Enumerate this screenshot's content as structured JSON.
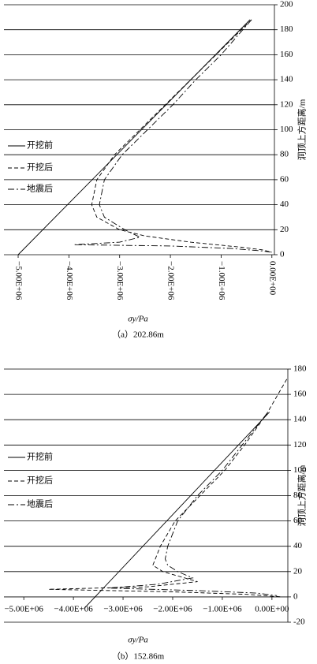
{
  "chart_data": [
    {
      "type": "line",
      "xlabel": "σy/Pa",
      "ylabel": "洞顶上方距离/m",
      "caption": "（a）202.86m",
      "xlim": [
        -5280000,
        50000
      ],
      "ylim": [
        0,
        200
      ],
      "xticks": [
        {
          "value": -5000000,
          "label": "−5.00E+06"
        },
        {
          "value": -4000000,
          "label": "−4.00E+06"
        },
        {
          "value": -3000000,
          "label": "−3.00E+06"
        },
        {
          "value": -2000000,
          "label": "−2.00E+06"
        },
        {
          "value": -1000000,
          "label": "−1.00E+06"
        },
        {
          "value": 0,
          "label": "0.00E+00"
        }
      ],
      "yticks": [
        0,
        20,
        40,
        60,
        80,
        100,
        120,
        140,
        160,
        180,
        200
      ],
      "grid": true,
      "series": [
        {
          "name": "开挖前",
          "color": "#000000",
          "linestyle": "solid",
          "x": [
            -5000000,
            -430000
          ],
          "y": [
            0,
            188
          ]
        },
        {
          "name": "开挖后",
          "color": "#000000",
          "linestyle": "dashed",
          "x": [
            -400000,
            -1100000,
            -1600000,
            -2100000,
            -2600000,
            -3100000,
            -3450000,
            -3550000,
            -3450000,
            -3000000,
            -2500000,
            -1600000,
            -600000,
            -200000,
            0
          ],
          "y": [
            188,
            160,
            140,
            120,
            100,
            80,
            60,
            40,
            30,
            20,
            15,
            10,
            6,
            4,
            2
          ]
        },
        {
          "name": "地震后",
          "color": "#000000",
          "linestyle": "dashdot",
          "x": [
            -400000,
            -1000000,
            -1500000,
            -1950000,
            -2450000,
            -2950000,
            -3300000,
            -3400000,
            -3300000,
            -2900000,
            -2600000,
            -3000000,
            -3900000,
            -2000000,
            -800000,
            -200000,
            0
          ],
          "y": [
            188,
            160,
            140,
            120,
            100,
            80,
            60,
            40,
            30,
            20,
            14,
            10,
            8,
            7,
            5,
            3,
            2
          ]
        }
      ]
    },
    {
      "type": "line",
      "xlabel": "σy/Pa",
      "ylabel": "洞顶上方距离/m",
      "caption": "（b）152.86m",
      "xlim": [
        -5400000,
        320000
      ],
      "ylim": [
        -20,
        180
      ],
      "xticks": [
        {
          "value": -5000000,
          "label": "−5.00E+06"
        },
        {
          "value": -4000000,
          "label": "−4.00E+06"
        },
        {
          "value": -3000000,
          "label": "−3.00E+06"
        },
        {
          "value": -2000000,
          "label": "−2.00E+06"
        },
        {
          "value": -1000000,
          "label": "−1.00E+06"
        },
        {
          "value": 0,
          "label": "0.00E+00"
        }
      ],
      "yticks": [
        -20,
        0,
        20,
        40,
        60,
        80,
        100,
        120,
        140,
        160,
        180
      ],
      "grid": true,
      "series": [
        {
          "name": "开挖前",
          "color": "#000000",
          "linestyle": "solid",
          "x": [
            -3780000,
            -50000
          ],
          "y": [
            -9,
            146
          ]
        },
        {
          "name": "开挖后",
          "color": "#000000",
          "linestyle": "dashed",
          "x": [
            300000,
            -100000,
            -550000,
            -950000,
            -1450000,
            -1950000,
            -2250000,
            -2350000,
            -2400000,
            -2200000,
            -1500000,
            -2500000,
            -4500000,
            -2000000,
            -500000,
            200000
          ],
          "y": [
            172,
            145,
            120,
            100,
            80,
            60,
            40,
            30,
            25,
            20,
            12,
            8,
            6,
            4,
            2,
            0
          ]
        },
        {
          "name": "地震后",
          "color": "#000000",
          "linestyle": "dashdot",
          "x": [
            -100000,
            -600000,
            -1000000,
            -1500000,
            -1900000,
            -2100000,
            -2150000,
            -2100000,
            -1900000,
            -1600000,
            -2300000,
            -3300000,
            -1500000,
            -300000,
            100000
          ],
          "y": [
            145,
            120,
            100,
            80,
            60,
            40,
            30,
            25,
            20,
            15,
            10,
            7,
            5,
            3,
            1
          ]
        }
      ]
    }
  ]
}
